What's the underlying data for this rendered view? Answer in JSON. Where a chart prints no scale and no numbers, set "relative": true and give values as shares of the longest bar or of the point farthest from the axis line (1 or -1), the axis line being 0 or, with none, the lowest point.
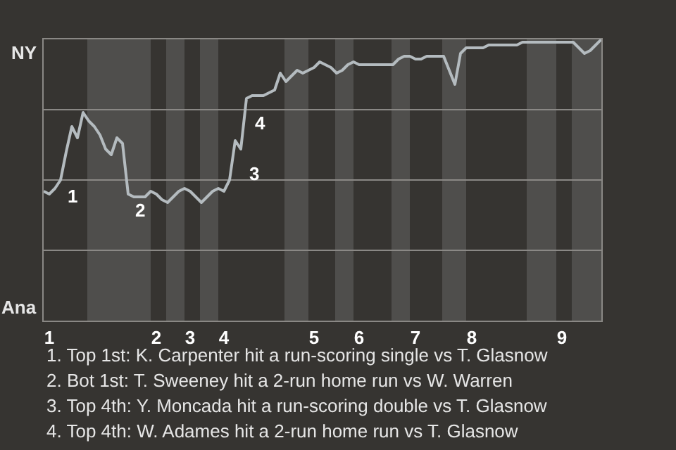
{
  "chart_data": {
    "type": "line",
    "relative": true,
    "categories": [
      null,
      "1",
      null,
      null,
      null,
      null,
      null,
      null,
      null,
      null,
      null,
      null,
      null,
      null,
      null,
      null,
      null,
      null,
      null,
      null,
      "2",
      null,
      null,
      null,
      null,
      null,
      "3",
      null,
      null,
      null,
      null,
      null,
      "4",
      null,
      null,
      null,
      null,
      null,
      null,
      null,
      null,
      null,
      null,
      null,
      null,
      null,
      null,
      null,
      "5",
      null,
      null,
      null,
      null,
      null,
      null,
      null,
      "6",
      null,
      null,
      null,
      null,
      null,
      null,
      null,
      null,
      null,
      "7",
      null,
      null,
      null,
      null,
      null,
      null,
      null,
      null,
      null,
      "8",
      null,
      null,
      null,
      null,
      null,
      null,
      null,
      null,
      null,
      null,
      null,
      null,
      null,
      null,
      null,
      "9",
      null,
      null,
      null,
      null,
      null,
      null,
      null
    ],
    "series": [
      {
        "color": "#b4bbbf",
        "values": [
          0.46,
          0.45,
          0.47,
          0.5,
          0.6,
          0.69,
          0.65,
          0.74,
          0.71,
          0.69,
          0.66,
          0.61,
          0.59,
          0.65,
          0.63,
          0.45,
          0.44,
          0.44,
          0.44,
          0.46,
          0.45,
          0.43,
          0.42,
          0.44,
          0.46,
          0.47,
          0.46,
          0.44,
          0.42,
          0.44,
          0.46,
          0.47,
          0.46,
          0.5,
          0.64,
          0.61,
          0.79,
          0.8,
          0.8,
          0.8,
          0.81,
          0.82,
          0.88,
          0.85,
          0.87,
          0.89,
          0.88,
          0.89,
          0.9,
          0.92,
          0.91,
          0.9,
          0.88,
          0.89,
          0.91,
          0.92,
          0.91,
          0.91,
          0.91,
          0.91,
          0.91,
          0.91,
          0.91,
          0.93,
          0.94,
          0.94,
          0.93,
          0.93,
          0.94,
          0.94,
          0.94,
          0.94,
          0.89,
          0.84,
          0.95,
          0.97,
          0.97,
          0.97,
          0.97,
          0.98,
          0.98,
          0.98,
          0.98,
          0.98,
          0.98,
          0.99,
          0.99,
          0.99,
          0.99,
          0.99,
          0.99,
          0.99,
          0.99,
          0.99,
          0.99,
          0.97,
          0.95,
          0.96,
          0.98,
          1.0
        ]
      }
    ],
    "grid": false,
    "ref_lines": [
      {
        "axis": "y",
        "value": 0.25,
        "color": "#8a8885"
      },
      {
        "axis": "y",
        "value": 0.5,
        "color": "#8a8885"
      },
      {
        "axis": "y",
        "value": 0.75,
        "color": "#8a8885"
      }
    ],
    "annotations": [
      {
        "text": "NY"
      },
      {
        "text": "Ana"
      },
      {
        "text": "1"
      },
      {
        "text": "2"
      },
      {
        "text": "3"
      },
      {
        "text": "4"
      },
      "1. Top 1st: K. Carpenter hit a run-scoring single vs T. Glasnow",
      "2. Bot 1st: T. Sweeney hit a 2-run home run vs W. Warren",
      "3. Top 4th: Y. Moncada hit a run-scoring double vs T. Glasnow",
      "4. Top 4th: W. Adames hit a 2-run home run vs T. Glasnow"
    ]
  }
}
